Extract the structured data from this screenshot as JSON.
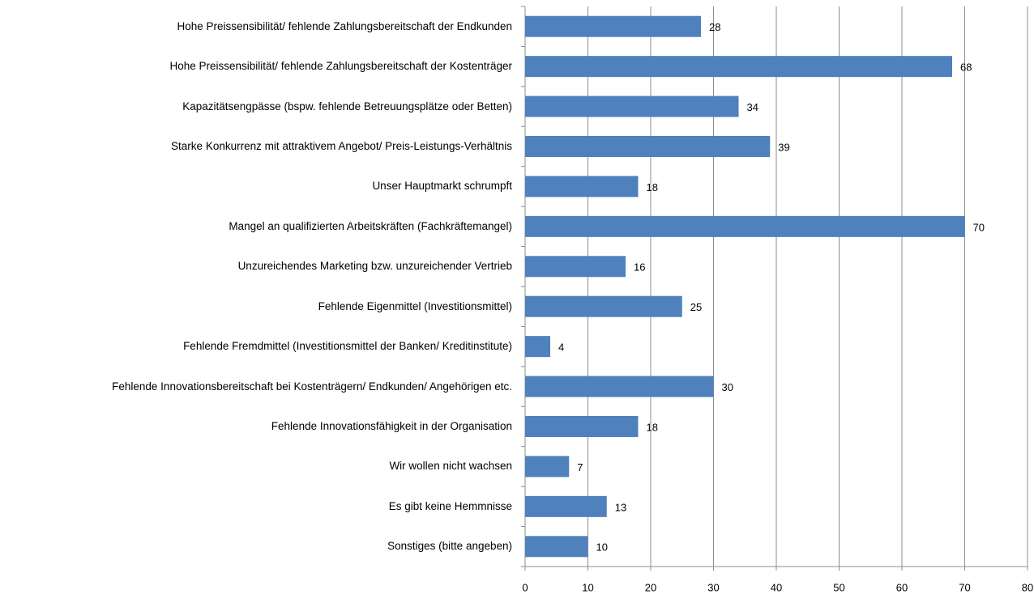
{
  "chart_data": {
    "type": "barh",
    "categories": [
      "Hohe Preissensibilität/ fehlende Zahlungsbereitschaft der Endkunden",
      "Hohe Preissensibilität/ fehlende Zahlungsbereitschaft der Kostenträger",
      "Kapazitätsengpässe (bspw. fehlende Betreuungsplätze oder Betten)",
      "Starke Konkurrenz mit attraktivem Angebot/ Preis-Leistungs-Verhältnis",
      "Unser Hauptmarkt schrumpft",
      "Mangel an qualifizierten Arbeitskräften (Fachkräftemangel)",
      "Unzureichendes Marketing bzw. unzureichender Vertrieb",
      "Fehlende Eigenmittel (Investitionsmittel)",
      "Fehlende Fremdmittel (Investitionsmittel der Banken/ Kreditinstitute)",
      "Fehlende Innovationsbereitschaft bei Kostenträgern/ Endkunden/ Angehörigen etc.",
      "Fehlende Innovationsfähigkeit in der Organisation",
      "Wir wollen nicht wachsen",
      "Es gibt keine Hemmnisse",
      "Sonstiges (bitte angeben)"
    ],
    "values": [
      28,
      68,
      34,
      39,
      18,
      70,
      16,
      25,
      4,
      30,
      18,
      7,
      13,
      10
    ],
    "color": "#4f81bd",
    "xlim": [
      0,
      80
    ],
    "xticks": [
      0,
      10,
      20,
      30,
      40,
      50,
      60,
      70,
      80
    ],
    "grid": true
  }
}
